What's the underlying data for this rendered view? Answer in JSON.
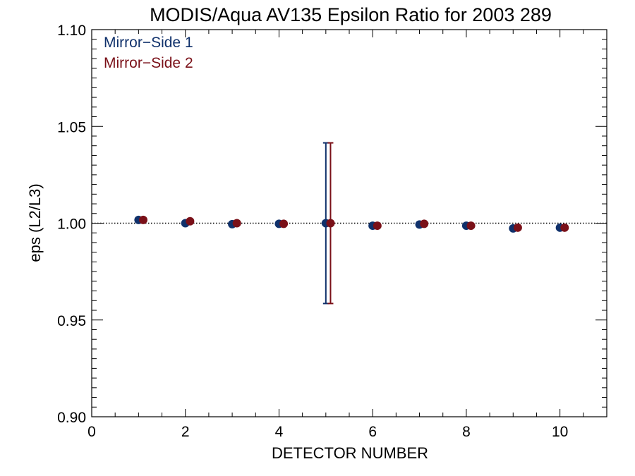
{
  "chart_data": {
    "type": "scatter",
    "title": "MODIS/Aqua AV135 Epsilon Ratio for 2003 289",
    "xlabel": "DETECTOR NUMBER",
    "ylabel": "eps (L2/L3)",
    "xlim": [
      0,
      11
    ],
    "ylim": [
      0.9,
      1.1
    ],
    "x_ticks": [
      0,
      2,
      4,
      6,
      8,
      10
    ],
    "x_tick_labels": [
      "0",
      "2",
      "4",
      "6",
      "8",
      "10"
    ],
    "y_ticks": [
      0.9,
      0.95,
      1.0,
      1.05,
      1.1
    ],
    "y_tick_labels": [
      "0.90",
      "0.95",
      "1.00",
      "1.05",
      "1.10"
    ],
    "reference_line": {
      "y": 1.0,
      "style": "dotted"
    },
    "legend_position": "top-left",
    "series": [
      {
        "name": "Mirror−Side 1",
        "color": "#10316b",
        "x": [
          1,
          2,
          3,
          4,
          5,
          6,
          7,
          8,
          9,
          10
        ],
        "values": [
          1.0017,
          1.0,
          0.9995,
          0.9997,
          1.0,
          0.9987,
          0.9993,
          0.9987,
          0.9973,
          0.9977
        ],
        "error_bars": [
          {
            "x": 5,
            "low": 0.9585,
            "high": 1.0415
          }
        ]
      },
      {
        "name": "Mirror−Side 2",
        "color": "#7a1018",
        "x": [
          1.1,
          2.1,
          3.1,
          4.1,
          5.1,
          6.1,
          7.1,
          8.1,
          9.1,
          10.1
        ],
        "values": [
          1.0017,
          1.001,
          1.0,
          0.9997,
          1.0,
          0.9987,
          0.9997,
          0.9987,
          0.9977,
          0.9977
        ],
        "error_bars": [
          {
            "x": 5.1,
            "low": 0.9585,
            "high": 1.0415
          }
        ]
      }
    ]
  }
}
